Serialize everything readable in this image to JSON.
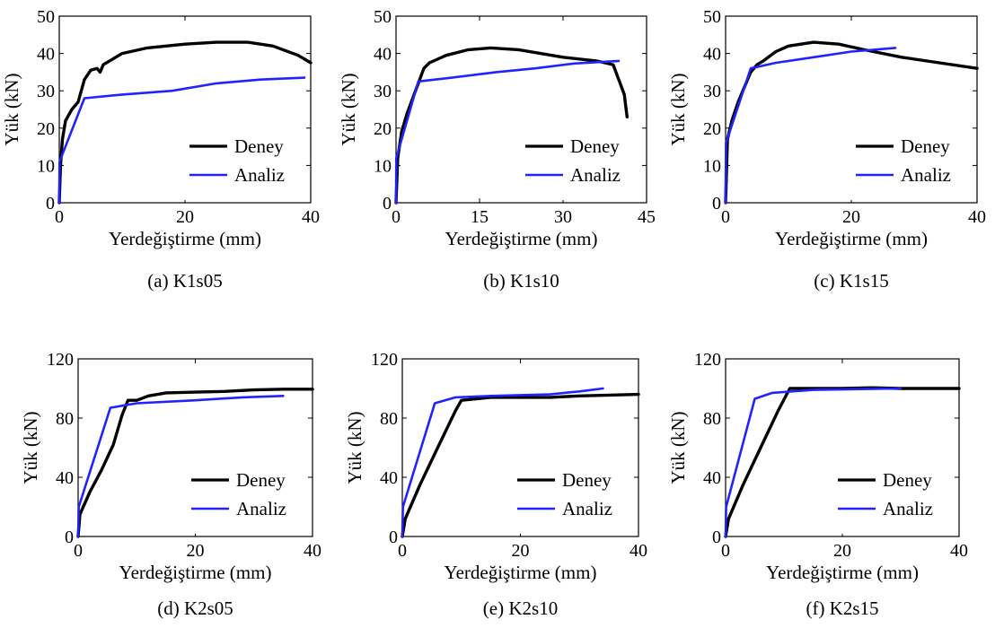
{
  "colors": {
    "Deney": "#000000",
    "Analiz": "#2222ff"
  },
  "chart_data": [
    {
      "type": "line",
      "caption": "(a) K1s05",
      "xlabel": "Yerdeğiştirme (mm)",
      "ylabel": "Yük (kN)",
      "xlim": [
        0,
        40
      ],
      "ylim": [
        0,
        50
      ],
      "xticks": [
        "0",
        "20",
        "40"
      ],
      "yticks": [
        "0",
        "10",
        "20",
        "30",
        "40",
        "50"
      ],
      "legend": "bottom-right",
      "series": [
        {
          "name": "Deney",
          "points": [
            [
              0,
              0
            ],
            [
              0.2,
              10
            ],
            [
              0.5,
              17
            ],
            [
              1,
              22
            ],
            [
              2,
              25
            ],
            [
              3,
              27
            ],
            [
              4,
              33
            ],
            [
              5,
              35.5
            ],
            [
              6,
              36
            ],
            [
              6.5,
              35
            ],
            [
              7,
              37
            ],
            [
              8,
              38
            ],
            [
              10,
              40
            ],
            [
              14,
              41.5
            ],
            [
              20,
              42.5
            ],
            [
              25,
              43
            ],
            [
              30,
              43
            ],
            [
              34,
              42
            ],
            [
              38,
              39.5
            ],
            [
              40,
              37.5
            ]
          ]
        },
        {
          "name": "Analiz",
          "points": [
            [
              0,
              0
            ],
            [
              0.05,
              11
            ],
            [
              4,
              28
            ],
            [
              10,
              29
            ],
            [
              18,
              30
            ],
            [
              25,
              32
            ],
            [
              32,
              33
            ],
            [
              39,
              33.5
            ]
          ]
        }
      ]
    },
    {
      "type": "line",
      "caption": "(b) K1s10",
      "xlabel": "Yerdeğiştirme (mm)",
      "ylabel": "Yük (kN)",
      "xlim": [
        0,
        45
      ],
      "ylim": [
        0,
        50
      ],
      "xticks": [
        "0",
        "15",
        "30",
        "45"
      ],
      "yticks": [
        "0",
        "10",
        "20",
        "30",
        "40",
        "50"
      ],
      "legend": "bottom-right",
      "series": [
        {
          "name": "Deney",
          "points": [
            [
              0,
              0
            ],
            [
              0.3,
              12
            ],
            [
              1,
              19
            ],
            [
              2,
              24
            ],
            [
              3,
              28
            ],
            [
              4,
              32
            ],
            [
              5,
              36
            ],
            [
              6,
              37.5
            ],
            [
              9,
              39.5
            ],
            [
              13,
              41
            ],
            [
              17,
              41.5
            ],
            [
              22,
              41
            ],
            [
              30,
              39
            ],
            [
              36,
              38
            ],
            [
              39,
              37
            ],
            [
              40,
              33
            ],
            [
              41,
              29
            ],
            [
              41.5,
              23
            ]
          ]
        },
        {
          "name": "Analiz",
          "points": [
            [
              0,
              0
            ],
            [
              0.05,
              12
            ],
            [
              4,
              32.5
            ],
            [
              10,
              33.5
            ],
            [
              18,
              35
            ],
            [
              25,
              36
            ],
            [
              32,
              37.3
            ],
            [
              40,
              38
            ]
          ]
        }
      ]
    },
    {
      "type": "line",
      "caption": "(c) K1s15",
      "xlabel": "Yerdeğiştirme (mm)",
      "ylabel": "Yük (kN)",
      "xlim": [
        0,
        40
      ],
      "ylim": [
        0,
        50
      ],
      "xticks": [
        "0",
        "20",
        "40"
      ],
      "yticks": [
        "0",
        "10",
        "20",
        "30",
        "40",
        "50"
      ],
      "legend": "bottom-right",
      "series": [
        {
          "name": "Deney",
          "points": [
            [
              0,
              0
            ],
            [
              0.3,
              17
            ],
            [
              1,
              22
            ],
            [
              2,
              27
            ],
            [
              3,
              31
            ],
            [
              4,
              35
            ],
            [
              5,
              37
            ],
            [
              6,
              38
            ],
            [
              8,
              40.5
            ],
            [
              10,
              42
            ],
            [
              14,
              43
            ],
            [
              18,
              42.5
            ],
            [
              22,
              41
            ],
            [
              28,
              39
            ],
            [
              34,
              37.5
            ],
            [
              40,
              36
            ]
          ]
        },
        {
          "name": "Analiz",
          "points": [
            [
              0,
              0
            ],
            [
              0.05,
              16
            ],
            [
              4,
              36
            ],
            [
              8,
              37.5
            ],
            [
              14,
              39
            ],
            [
              20,
              40.5
            ],
            [
              27,
              41.5
            ]
          ]
        }
      ]
    },
    {
      "type": "line",
      "caption": "(d) K2s05",
      "xlabel": "Yerdeğiştirme (mm)",
      "ylabel": "Yük (kN)",
      "xlim": [
        0,
        40
      ],
      "ylim": [
        0,
        120
      ],
      "xticks": [
        "0",
        "20",
        "40"
      ],
      "yticks": [
        "0",
        "40",
        "80",
        "120"
      ],
      "legend": "bottom-right",
      "series": [
        {
          "name": "Deney",
          "points": [
            [
              0,
              0
            ],
            [
              0.3,
              15
            ],
            [
              2,
              30
            ],
            [
              4,
              45
            ],
            [
              6,
              62
            ],
            [
              7.5,
              82
            ],
            [
              8.5,
              92
            ],
            [
              10,
              92
            ],
            [
              12,
              95
            ],
            [
              15,
              97
            ],
            [
              20,
              97.5
            ],
            [
              25,
              98
            ],
            [
              30,
              99
            ],
            [
              35,
              99.5
            ],
            [
              40,
              99.5
            ]
          ]
        },
        {
          "name": "Analiz",
          "points": [
            [
              0,
              0
            ],
            [
              0.1,
              20
            ],
            [
              5.5,
              87
            ],
            [
              10,
              90
            ],
            [
              20,
              92
            ],
            [
              28,
              94
            ],
            [
              35,
              95
            ]
          ]
        }
      ]
    },
    {
      "type": "line",
      "caption": "(e) K2s10",
      "xlabel": "Yerdeğiştirme (mm)",
      "ylabel": "Yük (kN)",
      "xlim": [
        0,
        40
      ],
      "ylim": [
        0,
        120
      ],
      "xticks": [
        "0",
        "20",
        "40"
      ],
      "yticks": [
        "0",
        "40",
        "80",
        "120"
      ],
      "legend": "bottom-right",
      "series": [
        {
          "name": "Deney",
          "points": [
            [
              0,
              0
            ],
            [
              0.5,
              12
            ],
            [
              3,
              35
            ],
            [
              6,
              60
            ],
            [
              9,
              85
            ],
            [
              10,
              92
            ],
            [
              15,
              94
            ],
            [
              20,
              94
            ],
            [
              25,
              94
            ],
            [
              30,
              95
            ],
            [
              35,
              95.5
            ],
            [
              40,
              96
            ]
          ]
        },
        {
          "name": "Analiz",
          "points": [
            [
              0,
              0
            ],
            [
              0.1,
              20
            ],
            [
              5.5,
              90
            ],
            [
              9,
              94
            ],
            [
              15,
              95
            ],
            [
              25,
              96
            ],
            [
              30,
              98
            ],
            [
              34,
              100
            ]
          ]
        }
      ]
    },
    {
      "type": "line",
      "caption": "(f) K2s15",
      "xlabel": "Yerdeğiştirme (mm)",
      "ylabel": "Yük (kN)",
      "xlim": [
        0,
        40
      ],
      "ylim": [
        0,
        120
      ],
      "xticks": [
        "0",
        "20",
        "40"
      ],
      "yticks": [
        "0",
        "40",
        "80",
        "120"
      ],
      "legend": "bottom-right",
      "series": [
        {
          "name": "Deney",
          "points": [
            [
              0,
              0
            ],
            [
              0.5,
              12
            ],
            [
              3,
              35
            ],
            [
              6,
              60
            ],
            [
              9,
              85
            ],
            [
              11,
              100
            ],
            [
              14,
              100
            ],
            [
              20,
              100
            ],
            [
              25,
              100.5
            ],
            [
              30,
              100
            ],
            [
              35,
              100
            ],
            [
              40,
              100
            ]
          ]
        },
        {
          "name": "Analiz",
          "points": [
            [
              0,
              0
            ],
            [
              0.1,
              20
            ],
            [
              5,
              93
            ],
            [
              8,
              97
            ],
            [
              15,
              99
            ],
            [
              22,
              99.5
            ],
            [
              30,
              100
            ]
          ]
        }
      ]
    }
  ]
}
